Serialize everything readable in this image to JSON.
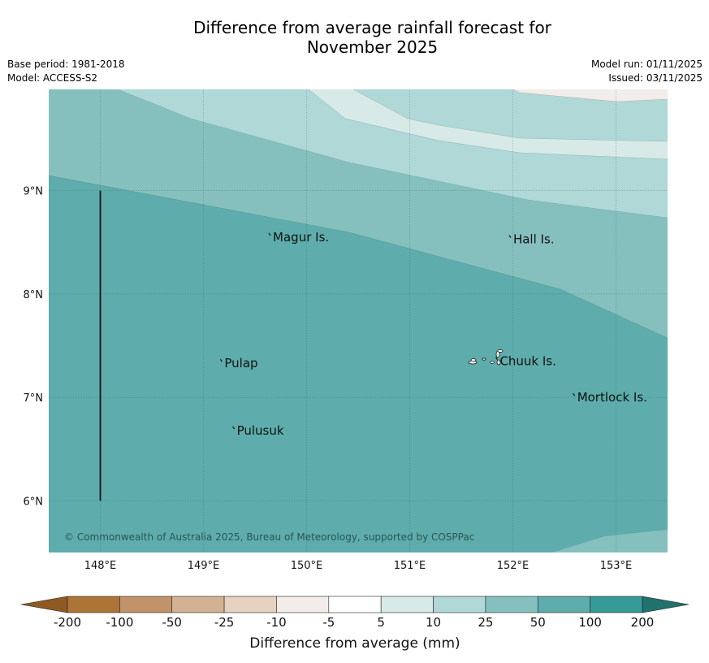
{
  "title_line1": "Difference from average rainfall forecast for",
  "title_line2": "November 2025",
  "base_period": "Base period: 1981-2018",
  "model": "Model: ACCESS-S2",
  "model_run": "Model run: 01/11/2025",
  "issued": "Issued: 03/11/2025",
  "copyright": "© Commonwealth of Australia 2025, Bureau of Meteorology, supported by COSPPac",
  "map": {
    "lon_min": 147.5,
    "lon_max": 153.5,
    "lat_min": 5.5,
    "lat_max": 9.98,
    "lon_ticks": [
      {
        "value": 148,
        "label": "148°E"
      },
      {
        "value": 149,
        "label": "149°E"
      },
      {
        "value": 150,
        "label": "150°E"
      },
      {
        "value": 151,
        "label": "151°E"
      },
      {
        "value": 152,
        "label": "152°E"
      },
      {
        "value": 153,
        "label": "153°E"
      }
    ],
    "lat_ticks": [
      {
        "value": 9,
        "label": "9°N"
      },
      {
        "value": 8,
        "label": "8°N"
      },
      {
        "value": 7,
        "label": "7°N"
      },
      {
        "value": 6,
        "label": "6°N"
      }
    ],
    "places": [
      {
        "name": "Magur Is.",
        "lon": 149.65,
        "lat": 8.55
      },
      {
        "name": "Hall Is.",
        "lon": 151.98,
        "lat": 8.53
      },
      {
        "name": "Pulap",
        "lon": 149.18,
        "lat": 7.33
      },
      {
        "name": "Chuuk Is.",
        "lon": 151.85,
        "lat": 7.35
      },
      {
        "name": "Mortlock Is.",
        "lon": 152.6,
        "lat": 7.0
      },
      {
        "name": "Pulusuk",
        "lon": 149.3,
        "lat": 6.68
      }
    ],
    "boundary_line": {
      "lon": 148.0,
      "lat_from": 6.0,
      "lat_to": 9.0
    }
  },
  "colorbar": {
    "title": "Difference from average (mm)",
    "tick_labels": [
      "-200",
      "-100",
      "-50",
      "-25",
      "-10",
      "-5",
      "5",
      "10",
      "25",
      "50",
      "100",
      "200"
    ],
    "colors": [
      "#ad7438",
      "#c2936a",
      "#d2b293",
      "#e5d2c0",
      "#f2ede8",
      "#ffffff",
      "#d7eae8",
      "#afd8d6",
      "#86c0be",
      "#5eadac",
      "#359b98"
    ],
    "under_color": "#8f5a22",
    "over_color": "#21716c"
  },
  "colors": {
    "c10": "#d7eae8",
    "c25": "#afd8d6",
    "c50": "#86c0be",
    "c100": "#5eadac",
    "c_near_zero": "#f2ede8"
  }
}
